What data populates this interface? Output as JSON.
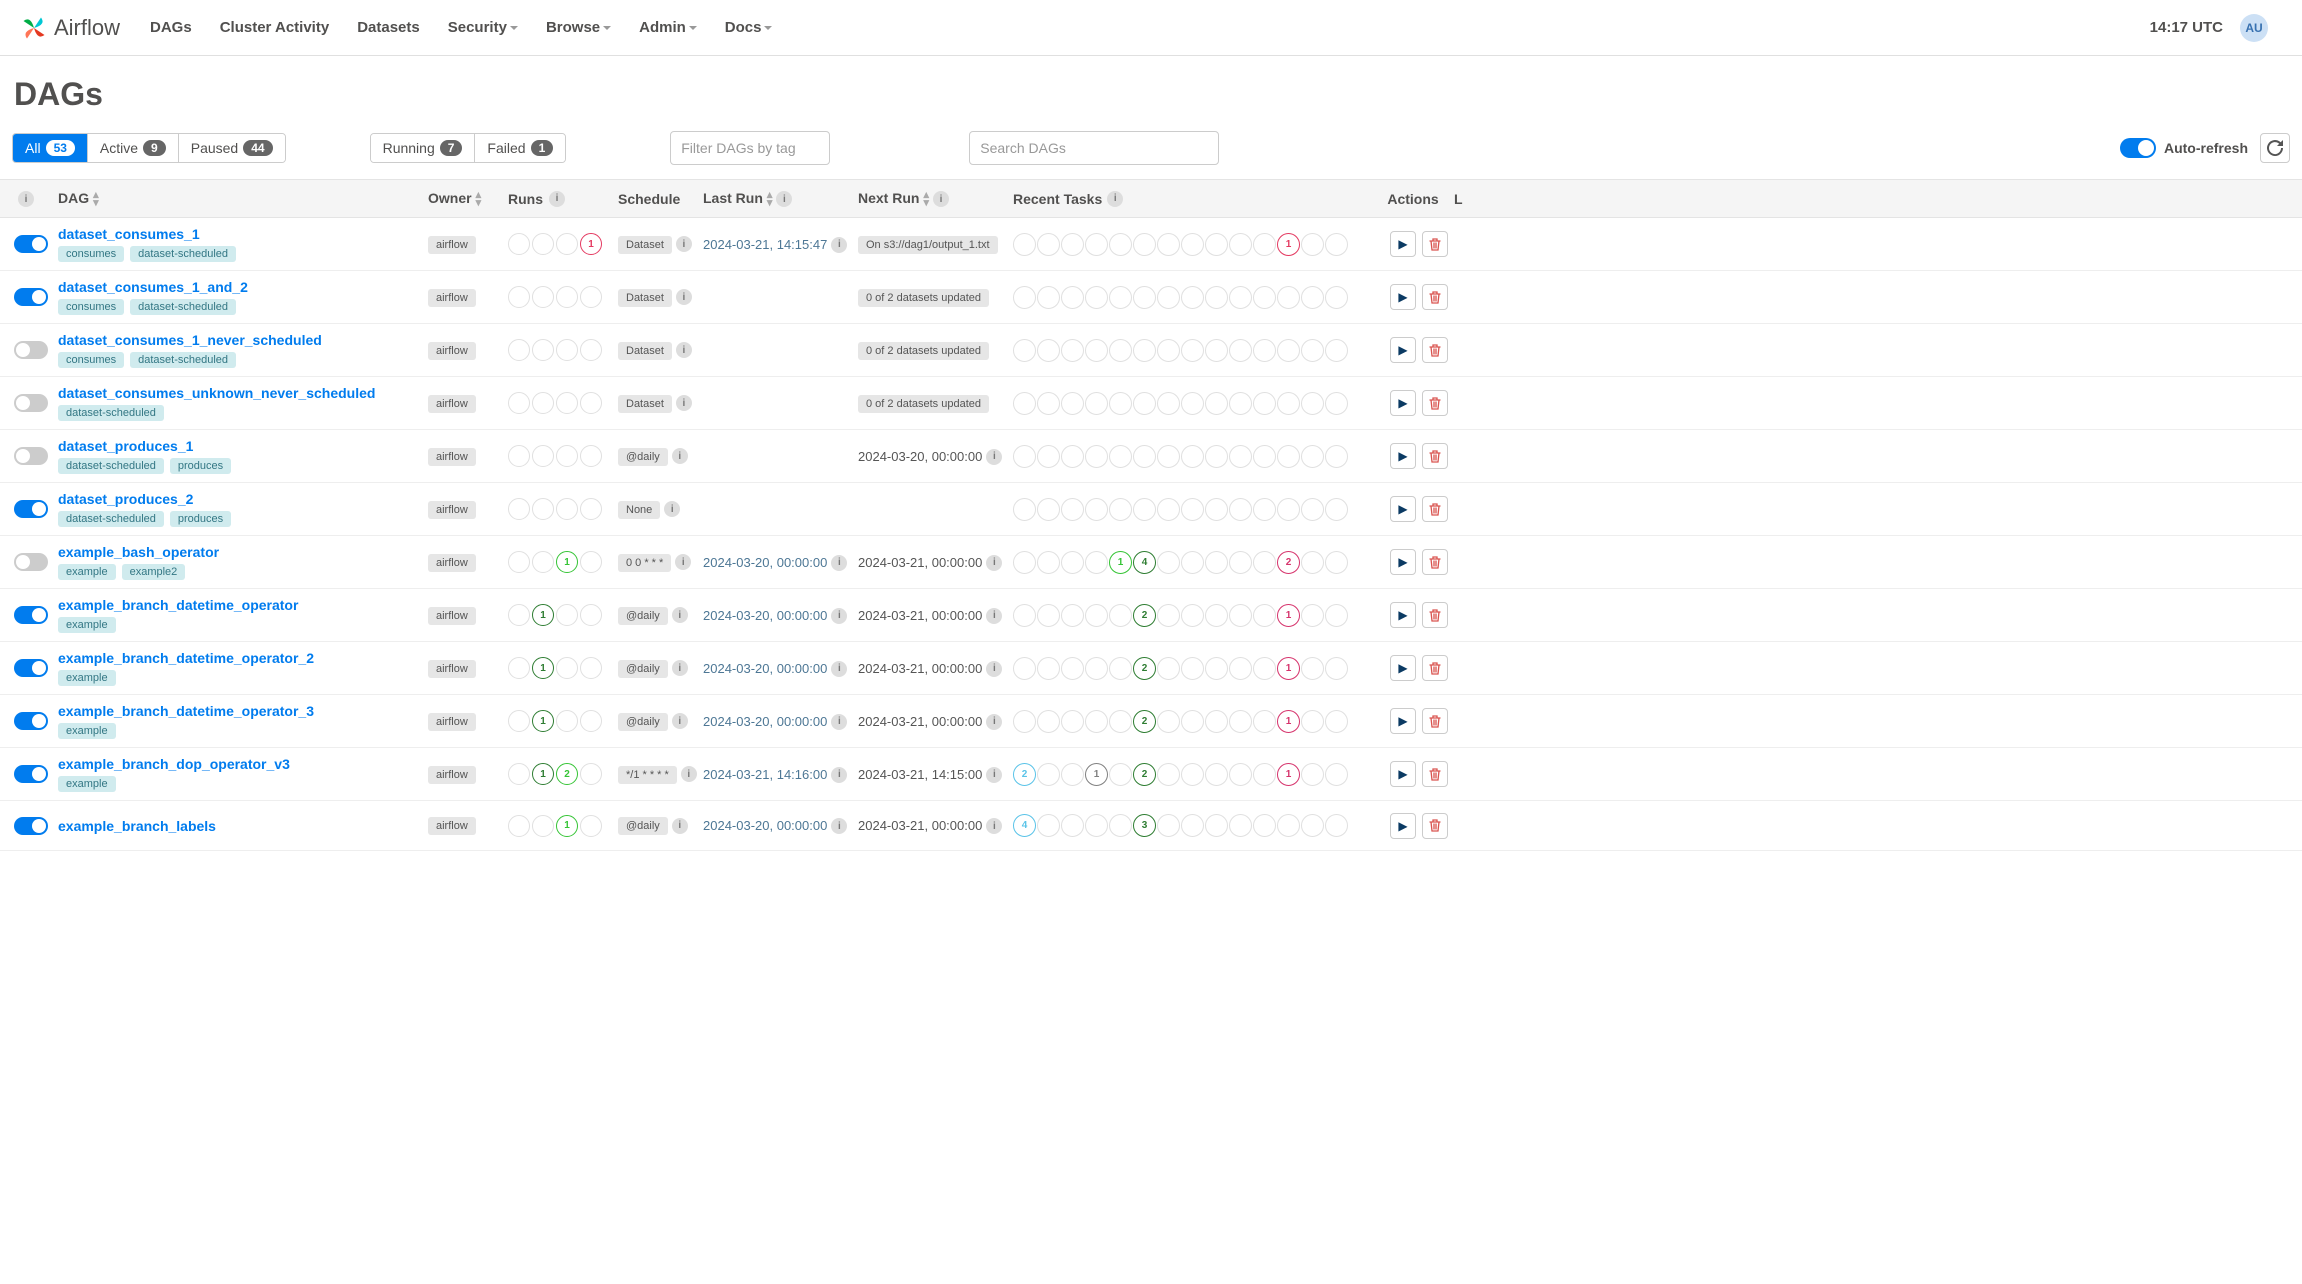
{
  "brand": "Airflow",
  "nav": {
    "items": [
      "DAGs",
      "Cluster Activity",
      "Datasets",
      "Security",
      "Browse",
      "Admin",
      "Docs"
    ],
    "dropdown": [
      false,
      false,
      false,
      true,
      true,
      true,
      true
    ],
    "clock": "14:17 UTC",
    "user_initials": "AU"
  },
  "page_title": "DAGs",
  "state_filters": [
    {
      "label": "All",
      "count": "53",
      "active": true
    },
    {
      "label": "Active",
      "count": "9",
      "active": false
    },
    {
      "label": "Paused",
      "count": "44",
      "active": false
    }
  ],
  "run_filters": [
    {
      "label": "Running",
      "count": "7"
    },
    {
      "label": "Failed",
      "count": "1"
    }
  ],
  "tag_filter_placeholder": "Filter DAGs by tag",
  "search_placeholder": "Search DAGs",
  "auto_refresh_label": "Auto-refresh",
  "columns": [
    "",
    "DAG",
    "Owner",
    "Runs",
    "Schedule",
    "Last Run",
    "Next Run",
    "Recent Tasks",
    "Actions",
    "L"
  ],
  "colors": {
    "success": "#00a651",
    "success_dark": "#2e7d32",
    "failed": "#e43a61",
    "skipped": "#d6336c",
    "queued": "#808080",
    "running": "#59c3e8",
    "deferred": "#999",
    "link": "#017cee"
  },
  "dags": [
    {
      "on": true,
      "id": "dataset_consumes_1",
      "tags": [
        "consumes",
        "dataset-scheduled"
      ],
      "owner": "airflow",
      "runs": [
        {},
        {},
        {},
        {
          "n": "1",
          "c": "#e43a61"
        }
      ],
      "schedule": "Dataset",
      "sched_info": true,
      "last_run": "2024-03-21, 14:15:47",
      "last_run_link": true,
      "next_run": "On s3://dag1/output_1.txt",
      "next_run_pill": true,
      "tasks": [
        {},
        {},
        {},
        {},
        {},
        {},
        {},
        {},
        {},
        {},
        {},
        {
          "n": "1",
          "c": "#e43a61"
        },
        {},
        {}
      ]
    },
    {
      "on": true,
      "id": "dataset_consumes_1_and_2",
      "tags": [
        "consumes",
        "dataset-scheduled"
      ],
      "owner": "airflow",
      "runs": [
        {},
        {},
        {},
        {}
      ],
      "schedule": "Dataset",
      "sched_info": true,
      "last_run": "",
      "next_run": "0 of 2 datasets updated",
      "next_run_pill": true,
      "tasks": [
        {},
        {},
        {},
        {},
        {},
        {},
        {},
        {},
        {},
        {},
        {},
        {},
        {},
        {}
      ]
    },
    {
      "on": false,
      "id": "dataset_consumes_1_never_scheduled",
      "tags": [
        "consumes",
        "dataset-scheduled"
      ],
      "owner": "airflow",
      "runs": [
        {},
        {},
        {},
        {}
      ],
      "schedule": "Dataset",
      "sched_info": true,
      "last_run": "",
      "next_run": "0 of 2 datasets updated",
      "next_run_pill": true,
      "tasks": [
        {},
        {},
        {},
        {},
        {},
        {},
        {},
        {},
        {},
        {},
        {},
        {},
        {},
        {}
      ]
    },
    {
      "on": false,
      "id": "dataset_consumes_unknown_never_scheduled",
      "tags": [
        "dataset-scheduled"
      ],
      "owner": "airflow",
      "runs": [
        {},
        {},
        {},
        {}
      ],
      "schedule": "Dataset",
      "sched_info": true,
      "last_run": "",
      "next_run": "0 of 2 datasets updated",
      "next_run_pill": true,
      "tasks": [
        {},
        {},
        {},
        {},
        {},
        {},
        {},
        {},
        {},
        {},
        {},
        {},
        {},
        {}
      ]
    },
    {
      "on": false,
      "id": "dataset_produces_1",
      "tags": [
        "dataset-scheduled",
        "produces"
      ],
      "owner": "airflow",
      "runs": [
        {},
        {},
        {},
        {}
      ],
      "schedule": "@daily",
      "sched_info": true,
      "last_run": "",
      "next_run": "2024-03-20, 00:00:00",
      "next_run_info": true,
      "tasks": [
        {},
        {},
        {},
        {},
        {},
        {},
        {},
        {},
        {},
        {},
        {},
        {},
        {},
        {}
      ]
    },
    {
      "on": true,
      "id": "dataset_produces_2",
      "tags": [
        "dataset-scheduled",
        "produces"
      ],
      "owner": "airflow",
      "runs": [
        {},
        {},
        {},
        {}
      ],
      "schedule": "None",
      "sched_info": true,
      "last_run": "",
      "next_run": "",
      "tasks": [
        {},
        {},
        {},
        {},
        {},
        {},
        {},
        {},
        {},
        {},
        {},
        {},
        {},
        {}
      ]
    },
    {
      "on": false,
      "id": "example_bash_operator",
      "tags": [
        "example",
        "example2"
      ],
      "owner": "airflow",
      "runs": [
        {},
        {},
        {
          "n": "1",
          "c": "#35c435"
        },
        {}
      ],
      "schedule": "0 0 * * *",
      "sched_info": true,
      "last_run": "2024-03-20, 00:00:00",
      "last_run_link": true,
      "next_run": "2024-03-21, 00:00:00",
      "next_run_info": true,
      "tasks": [
        {},
        {},
        {},
        {},
        {
          "n": "1",
          "c": "#35c435"
        },
        {
          "n": "4",
          "c": "#2e7d32"
        },
        {},
        {},
        {},
        {},
        {},
        {
          "n": "2",
          "c": "#d6336c"
        },
        {},
        {}
      ]
    },
    {
      "on": true,
      "id": "example_branch_datetime_operator",
      "tags": [
        "example"
      ],
      "owner": "airflow",
      "runs": [
        {},
        {
          "n": "1",
          "c": "#2e7d32"
        },
        {},
        {}
      ],
      "schedule": "@daily",
      "sched_info": true,
      "last_run": "2024-03-20, 00:00:00",
      "last_run_link": true,
      "next_run": "2024-03-21, 00:00:00",
      "next_run_info": true,
      "tasks": [
        {},
        {},
        {},
        {},
        {},
        {
          "n": "2",
          "c": "#2e7d32"
        },
        {},
        {},
        {},
        {},
        {},
        {
          "n": "1",
          "c": "#d6336c"
        },
        {},
        {}
      ]
    },
    {
      "on": true,
      "id": "example_branch_datetime_operator_2",
      "tags": [
        "example"
      ],
      "owner": "airflow",
      "runs": [
        {},
        {
          "n": "1",
          "c": "#2e7d32"
        },
        {},
        {}
      ],
      "schedule": "@daily",
      "sched_info": true,
      "last_run": "2024-03-20, 00:00:00",
      "last_run_link": true,
      "next_run": "2024-03-21, 00:00:00",
      "next_run_info": true,
      "tasks": [
        {},
        {},
        {},
        {},
        {},
        {
          "n": "2",
          "c": "#2e7d32"
        },
        {},
        {},
        {},
        {},
        {},
        {
          "n": "1",
          "c": "#d6336c"
        },
        {},
        {}
      ]
    },
    {
      "on": true,
      "id": "example_branch_datetime_operator_3",
      "tags": [
        "example"
      ],
      "owner": "airflow",
      "runs": [
        {},
        {
          "n": "1",
          "c": "#2e7d32"
        },
        {},
        {}
      ],
      "schedule": "@daily",
      "sched_info": true,
      "last_run": "2024-03-20, 00:00:00",
      "last_run_link": true,
      "next_run": "2024-03-21, 00:00:00",
      "next_run_info": true,
      "tasks": [
        {},
        {},
        {},
        {},
        {},
        {
          "n": "2",
          "c": "#2e7d32"
        },
        {},
        {},
        {},
        {},
        {},
        {
          "n": "1",
          "c": "#d6336c"
        },
        {},
        {}
      ]
    },
    {
      "on": true,
      "id": "example_branch_dop_operator_v3",
      "tags": [
        "example"
      ],
      "owner": "airflow",
      "runs": [
        {},
        {
          "n": "1",
          "c": "#2e7d32"
        },
        {
          "n": "2",
          "c": "#35c435"
        },
        {}
      ],
      "schedule": "*/1 * * * *",
      "sched_info": true,
      "last_run": "2024-03-21, 14:16:00",
      "last_run_link": true,
      "next_run": "2024-03-21, 14:15:00",
      "next_run_info": true,
      "tasks": [
        {
          "n": "2",
          "c": "#59c3e8"
        },
        {},
        {},
        {
          "n": "1",
          "c": "#808080"
        },
        {},
        {
          "n": "2",
          "c": "#2e7d32"
        },
        {},
        {},
        {},
        {},
        {},
        {
          "n": "1",
          "c": "#d6336c"
        },
        {},
        {}
      ]
    },
    {
      "on": true,
      "id": "example_branch_labels",
      "tags": [],
      "owner": "airflow",
      "runs": [
        {},
        {},
        {
          "n": "1",
          "c": "#35c435"
        },
        {}
      ],
      "schedule": "@daily",
      "sched_info": true,
      "last_run": "2024-03-20, 00:00:00",
      "last_run_link": true,
      "next_run": "2024-03-21, 00:00:00",
      "next_run_info": true,
      "tasks": [
        {
          "n": "4",
          "c": "#59c3e8"
        },
        {},
        {},
        {},
        {},
        {
          "n": "3",
          "c": "#2e7d32"
        },
        {},
        {},
        {},
        {},
        {},
        {},
        {},
        {}
      ]
    }
  ]
}
